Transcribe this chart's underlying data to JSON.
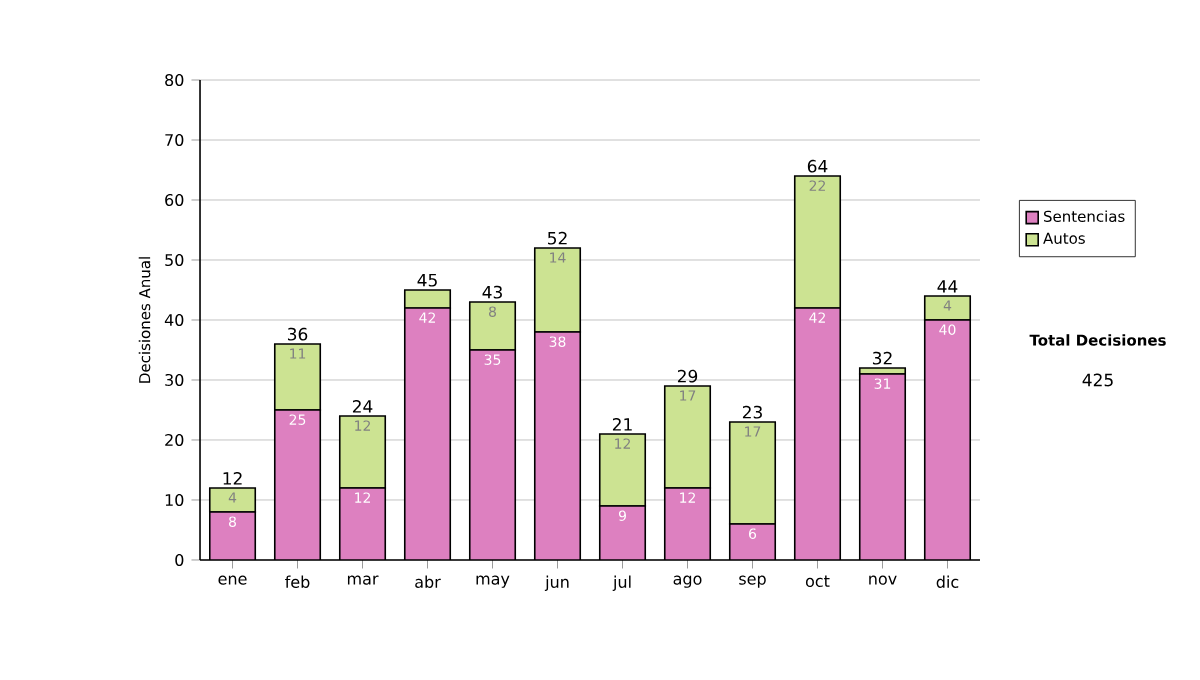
{
  "chart_data": {
    "type": "bar",
    "stacked": true,
    "ylabel": "Decisiones Anual",
    "categories": [
      "ene",
      "feb",
      "mar",
      "abr",
      "may",
      "jun",
      "jul",
      "ago",
      "sep",
      "oct",
      "nov",
      "dic"
    ],
    "series": [
      {
        "name": "Sentencias",
        "color": "#dd80c0",
        "values": [
          8,
          25,
          12,
          42,
          35,
          38,
          9,
          12,
          6,
          42,
          31,
          40
        ],
        "value_labels": [
          "8",
          "25",
          "12",
          "42",
          "35",
          "38",
          "9",
          "12",
          "6",
          "42",
          "31",
          "40"
        ]
      },
      {
        "name": "Autos",
        "color": "#cce392",
        "values": [
          4,
          11,
          12,
          3,
          8,
          14,
          12,
          17,
          17,
          22,
          1,
          4
        ],
        "value_labels": [
          "4",
          "11",
          "12",
          null,
          "8",
          "14",
          "12",
          "17",
          "17",
          "22",
          null,
          "4"
        ]
      }
    ],
    "totals": [
      "12",
      "36",
      "24",
      "45",
      "43",
      "52",
      "21",
      "29",
      "23",
      "64",
      "32",
      "44"
    ],
    "ylim": [
      0,
      80
    ],
    "yticks": [
      0,
      10,
      20,
      30,
      40,
      50,
      60,
      70,
      80
    ],
    "grid": "y",
    "legend": "right",
    "annotations": [
      "Total Decisiones",
      "425"
    ]
  }
}
